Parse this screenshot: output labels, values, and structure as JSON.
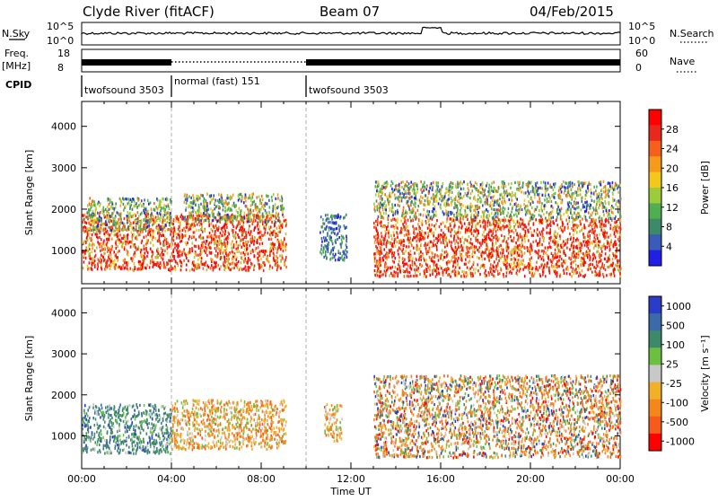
{
  "header": {
    "site": "Clyde River (fitACF)",
    "beam": "Beam 07",
    "date": "04/Feb/2015"
  },
  "strip_labels": {
    "nsky": "N.Sky",
    "nsearch": "N.Search",
    "freq_line1": "Freq.",
    "freq_line2": "[MHz]",
    "nave": "Nave",
    "cpid": "CPID"
  },
  "strip_ticks": {
    "nsky_left": [
      "10^5",
      "10^0"
    ],
    "nsearch_right": [
      "10^5",
      "10^0"
    ],
    "freq_left": [
      "18",
      "8"
    ],
    "nave_right": [
      "60",
      "0"
    ]
  },
  "cpid_segments": [
    {
      "label": "twofsound 3503",
      "start_hour": 0,
      "end_hour": 4
    },
    {
      "label": "normal (fast) 151",
      "start_hour": 4,
      "end_hour": 10
    },
    {
      "label": "twofsound 3503",
      "start_hour": 10,
      "end_hour": 24
    }
  ],
  "colors": {
    "power_scale": [
      "#1f1fe6",
      "#3a5bb8",
      "#3c8a6a",
      "#4fae4f",
      "#9ccc3c",
      "#f2c81c",
      "#f59a1c",
      "#f5601c",
      "#e8281c",
      "#ff0000"
    ],
    "velocity_scale": [
      "#2a3cc8",
      "#3a6aa8",
      "#3c8a6a",
      "#6cc040",
      "#c8c8c8",
      "#f2b02a",
      "#f5861c",
      "#f55c1c",
      "#ff0000"
    ]
  },
  "chart_data": [
    {
      "type": "heatmap",
      "panel": "power",
      "title": "",
      "xlabel": "",
      "ylabel": "Slant Range [km]",
      "xlim": [
        0,
        24
      ],
      "ylim": [
        200,
        4600
      ],
      "x_ticks": [
        "00:00",
        "04:00",
        "08:00",
        "12:00",
        "16:00",
        "20:00",
        "00:00"
      ],
      "y_ticks": [
        1000,
        2000,
        3000,
        4000
      ],
      "colorbar_label": "Power [dB]",
      "colorbar_ticks": [
        "4",
        "8",
        "12",
        "16",
        "20",
        "24",
        "28"
      ],
      "scatter_regions": [
        {
          "t0": 0.0,
          "t1": 9.1,
          "r0": 550,
          "r1": 1900,
          "level": "high"
        },
        {
          "t0": 0.2,
          "t1": 4.0,
          "r0": 1500,
          "r1": 2300,
          "level": "mid"
        },
        {
          "t0": 4.5,
          "t1": 9.0,
          "r0": 1700,
          "r1": 2400,
          "level": "mid"
        },
        {
          "t0": 10.6,
          "t1": 11.8,
          "r0": 800,
          "r1": 1900,
          "level": "low"
        },
        {
          "t0": 13.0,
          "t1": 24.0,
          "r0": 400,
          "r1": 1800,
          "level": "high"
        },
        {
          "t0": 13.0,
          "t1": 24.0,
          "r0": 1800,
          "r1": 2700,
          "level": "mid"
        }
      ]
    },
    {
      "type": "heatmap",
      "panel": "velocity",
      "title": "",
      "xlabel": "Time UT",
      "ylabel": "Slant Range [km]",
      "xlim": [
        0,
        24
      ],
      "ylim": [
        200,
        4600
      ],
      "x_ticks": [
        "00:00",
        "04:00",
        "08:00",
        "12:00",
        "16:00",
        "20:00",
        "00:00"
      ],
      "y_ticks": [
        1000,
        2000,
        3000,
        4000
      ],
      "colorbar_label": "Velocity [m s⁻¹]",
      "colorbar_ticks": [
        "1000",
        "500",
        "100",
        "25",
        "-25",
        "-100",
        "-500",
        "-1000"
      ],
      "scatter_regions": [
        {
          "t0": 0.0,
          "t1": 4.0,
          "r0": 600,
          "r1": 1800,
          "level": "toward"
        },
        {
          "t0": 4.0,
          "t1": 9.1,
          "r0": 700,
          "r1": 1900,
          "level": "away"
        },
        {
          "t0": 10.8,
          "t1": 11.6,
          "r0": 900,
          "r1": 1800,
          "level": "away"
        },
        {
          "t0": 13.0,
          "t1": 24.0,
          "r0": 500,
          "r1": 1800,
          "level": "mixed"
        },
        {
          "t0": 13.0,
          "t1": 24.0,
          "r0": 1800,
          "r1": 2500,
          "level": "mixed"
        }
      ]
    }
  ],
  "x_axis_title": "Time UT"
}
